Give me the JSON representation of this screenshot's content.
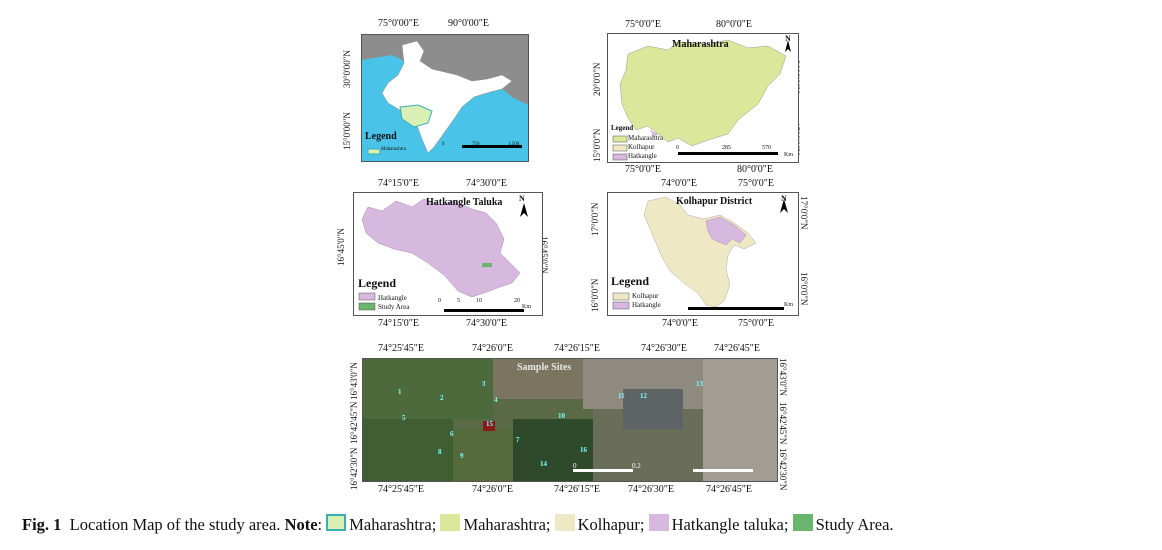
{
  "figure": {
    "caption_fig": "Fig. 1",
    "caption_text": "Location Map of the study area.",
    "caption_note": "Note",
    "legend_items": [
      {
        "label": "Maharashtra;",
        "color": "#d9efb3",
        "border": "#3aaeb8"
      },
      {
        "label": "Maharashtra;",
        "color": "#dbe79a",
        "border": "#dbe79a"
      },
      {
        "label": "Kolhapur;",
        "color": "#efe8c4",
        "border": "#efe8c4"
      },
      {
        "label": "Hatkangle taluka;",
        "color": "#d7b8df",
        "border": "#d7b8df"
      },
      {
        "label": "Study Area.",
        "color": "#6ab56c",
        "border": "#6ab56c"
      }
    ]
  },
  "india_map": {
    "top_labels": [
      "75°0'00\"E",
      "90°0'00\"E"
    ],
    "left_labels": [
      "30°0'00\"N",
      "15°0'00\"N"
    ],
    "legend_title": "Legend",
    "legend_item": "Maharashtra",
    "scale": [
      "0",
      "750",
      "1,500"
    ]
  },
  "maharashtra_map": {
    "title": "Maharashtra",
    "top_labels": [
      "75°0'0\"E",
      "80°0'0\"E"
    ],
    "bottom_labels": [
      "75°0'0\"E",
      "80°0'0\"E"
    ],
    "left_labels": [
      "20°0'0\"N",
      "15°0'0\"N"
    ],
    "right_labels": [
      "20°0'0\"N",
      "15°0'0\"N"
    ],
    "legend_title": "Legend",
    "legend_items": [
      "Maharashtra",
      "Kolhapur",
      "Hatkangle"
    ],
    "scale": [
      "0",
      "285",
      "570",
      "Km"
    ],
    "north": "N"
  },
  "hatkangle_map": {
    "title": "Hatkangle Taluka",
    "top_labels": [
      "74°15'0\"E",
      "74°30'0\"E"
    ],
    "bottom_labels": [
      "74°15'0\"E",
      "74°30'0\"E"
    ],
    "left_labels": [
      "16°45'0\"N"
    ],
    "right_labels": [
      "16°45'0\"N"
    ],
    "legend_title": "Legend",
    "legend_items": [
      "Hatkangle",
      "Study Area"
    ],
    "scale": [
      "0",
      "5",
      "10",
      "20",
      "Km"
    ],
    "north": "N"
  },
  "kolhapur_map": {
    "title": "Kolhapur District",
    "top_labels": [
      "74°0'0\"E",
      "75°0'0\"E"
    ],
    "bottom_labels": [
      "74°0'0\"E",
      "75°0'0\"E"
    ],
    "left_labels": [
      "17°0'0\"N",
      "16°0'0\"N"
    ],
    "right_labels": [
      "17°0'0\"N",
      "16°0'0\"N"
    ],
    "legend_title": "Legend",
    "legend_items": [
      "Kolhapur",
      "Hatkangle"
    ],
    "scale": [
      "Km"
    ],
    "north": "N"
  },
  "sample_map": {
    "title": "Sample Sites",
    "top_labels": [
      "74°25'45\"E",
      "74°26'0\"E",
      "74°26'15\"E",
      "74°26'30\"E",
      "74°26'45\"E"
    ],
    "bottom_labels": [
      "74°25'45\"E",
      "74°26'0\"E",
      "74°26'15\"E",
      "74°26'30\"E",
      "74°26'45\"E"
    ],
    "left_labels": [
      "16°43'0\"N",
      "16°42'45\"N",
      "16°42'30\"N"
    ],
    "right_labels": [
      "16°43'0\"N",
      "16°42'45\"N",
      "16°42'30\"N"
    ],
    "scale": [
      "0",
      "0.2"
    ],
    "sites": [
      "1",
      "2",
      "3",
      "4",
      "5",
      "6",
      "7",
      "8",
      "9",
      "10",
      "11",
      "12",
      "13",
      "14",
      "15",
      "16"
    ]
  }
}
